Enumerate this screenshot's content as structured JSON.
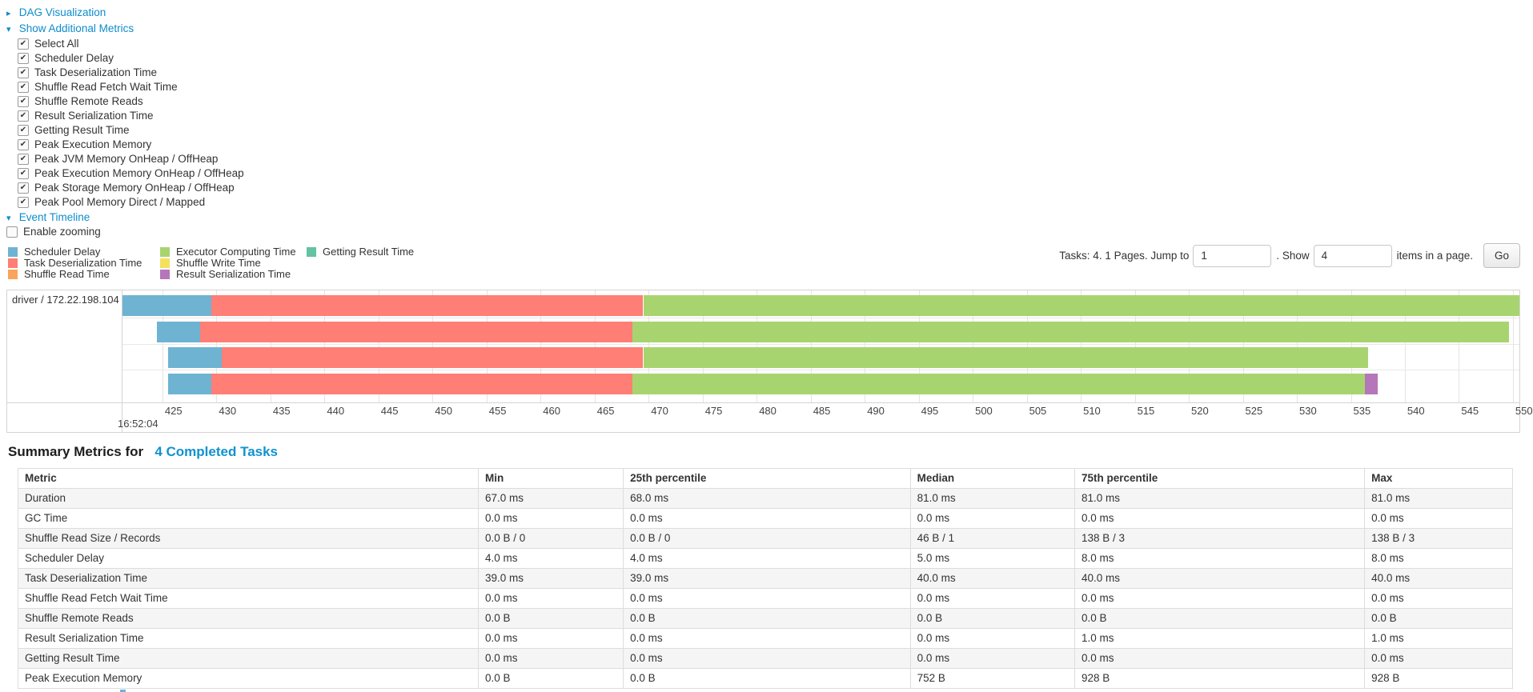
{
  "links": {
    "dag": "DAG Visualization",
    "metrics": "Show Additional Metrics",
    "timeline": "Event Timeline"
  },
  "metric_checkboxes": [
    "Select All",
    "Scheduler Delay",
    "Task Deserialization Time",
    "Shuffle Read Fetch Wait Time",
    "Shuffle Remote Reads",
    "Result Serialization Time",
    "Getting Result Time",
    "Peak Execution Memory",
    "Peak JVM Memory OnHeap / OffHeap",
    "Peak Execution Memory OnHeap / OffHeap",
    "Peak Storage Memory OnHeap / OffHeap",
    "Peak Pool Memory Direct / Mapped"
  ],
  "enable_zooming_label": "Enable zooming",
  "colors": {
    "scheduler-delay": "#6FB3D2",
    "task-deserialization": "#FF7E75",
    "shuffle-read": "#F9A45C",
    "executor-computing": "#A8D46F",
    "shuffle-write": "#F3E15E",
    "result-serialization": "#B576BA",
    "getting-result": "#65C2A3",
    "link": "#0d8ccc"
  },
  "legend_columns": [
    [
      {
        "label": "Scheduler Delay",
        "kind": "scheduler-delay"
      },
      {
        "label": "Task Deserialization Time",
        "kind": "task-deserialization"
      },
      {
        "label": "Shuffle Read Time",
        "kind": "shuffle-read"
      }
    ],
    [
      {
        "label": "Executor Computing Time",
        "kind": "executor-computing"
      },
      {
        "label": "Shuffle Write Time",
        "kind": "shuffle-write"
      },
      {
        "label": "Result Serialization Time",
        "kind": "result-serialization"
      }
    ],
    [
      {
        "label": "Getting Result Time",
        "kind": "getting-result"
      }
    ]
  ],
  "pagination": {
    "prefix": "Tasks: 4. 1 Pages. Jump to",
    "jump_value": "1",
    "mid": ". Show",
    "show_value": "4",
    "suffix": "items in a page.",
    "go": "Go"
  },
  "chart_data": {
    "type": "timeline-gantt",
    "row_label": "driver / 172.22.198.104",
    "x_axis": {
      "tick_start": 425,
      "tick_end": 550,
      "tick_step": 5,
      "major_label": "16:52:04",
      "visible_range": [
        421.3,
        550.6
      ]
    },
    "tasks": [
      {
        "segments": [
          {
            "kind": "scheduler-delay",
            "from": 421.3,
            "to": 429.5
          },
          {
            "kind": "task-deserialization",
            "from": 429.5,
            "to": 469.5
          },
          {
            "kind": "executor-computing",
            "from": 469.5,
            "to": 550.6
          }
        ]
      },
      {
        "segments": [
          {
            "kind": "scheduler-delay",
            "from": 424.5,
            "to": 428.5
          },
          {
            "kind": "task-deserialization",
            "from": 428.5,
            "to": 468.5
          },
          {
            "kind": "executor-computing",
            "from": 468.5,
            "to": 549.6
          }
        ]
      },
      {
        "segments": [
          {
            "kind": "scheduler-delay",
            "from": 425.5,
            "to": 430.5
          },
          {
            "kind": "task-deserialization",
            "from": 430.5,
            "to": 469.5
          },
          {
            "kind": "executor-computing",
            "from": 469.5,
            "to": 536.6
          }
        ]
      },
      {
        "segments": [
          {
            "kind": "scheduler-delay",
            "from": 425.5,
            "to": 429.5
          },
          {
            "kind": "task-deserialization",
            "from": 429.5,
            "to": 468.5
          },
          {
            "kind": "executor-computing",
            "from": 468.5,
            "to": 536.3
          },
          {
            "kind": "result-serialization",
            "from": 536.3,
            "to": 537.5
          }
        ]
      }
    ]
  },
  "summary": {
    "heading_prefix": "Summary Metrics for",
    "heading_link": "4 Completed Tasks",
    "columns": [
      "Metric",
      "Min",
      "25th percentile",
      "Median",
      "75th percentile",
      "Max"
    ],
    "col_widths_pct": [
      30.8,
      9.7,
      19.2,
      11.0,
      19.4,
      9.9
    ],
    "rows": [
      [
        "Duration",
        "67.0 ms",
        "68.0 ms",
        "81.0 ms",
        "81.0 ms",
        "81.0 ms"
      ],
      [
        "GC Time",
        "0.0 ms",
        "0.0 ms",
        "0.0 ms",
        "0.0 ms",
        "0.0 ms"
      ],
      [
        "Shuffle Read Size / Records",
        "0.0 B / 0",
        "0.0 B / 0",
        "46 B / 1",
        "138 B / 3",
        "138 B / 3"
      ],
      [
        "Scheduler Delay",
        "4.0 ms",
        "4.0 ms",
        "5.0 ms",
        "8.0 ms",
        "8.0 ms"
      ],
      [
        "Task Deserialization Time",
        "39.0 ms",
        "39.0 ms",
        "40.0 ms",
        "40.0 ms",
        "40.0 ms"
      ],
      [
        "Shuffle Read Fetch Wait Time",
        "0.0 ms",
        "0.0 ms",
        "0.0 ms",
        "0.0 ms",
        "0.0 ms"
      ],
      [
        "Shuffle Remote Reads",
        "0.0 B",
        "0.0 B",
        "0.0 B",
        "0.0 B",
        "0.0 B"
      ],
      [
        "Result Serialization Time",
        "0.0 ms",
        "0.0 ms",
        "0.0 ms",
        "1.0 ms",
        "1.0 ms"
      ],
      [
        "Getting Result Time",
        "0.0 ms",
        "0.0 ms",
        "0.0 ms",
        "0.0 ms",
        "0.0 ms"
      ],
      [
        "Peak Execution Memory",
        "0.0 B",
        "0.0 B",
        "752 B",
        "928 B",
        "928 B"
      ]
    ]
  }
}
